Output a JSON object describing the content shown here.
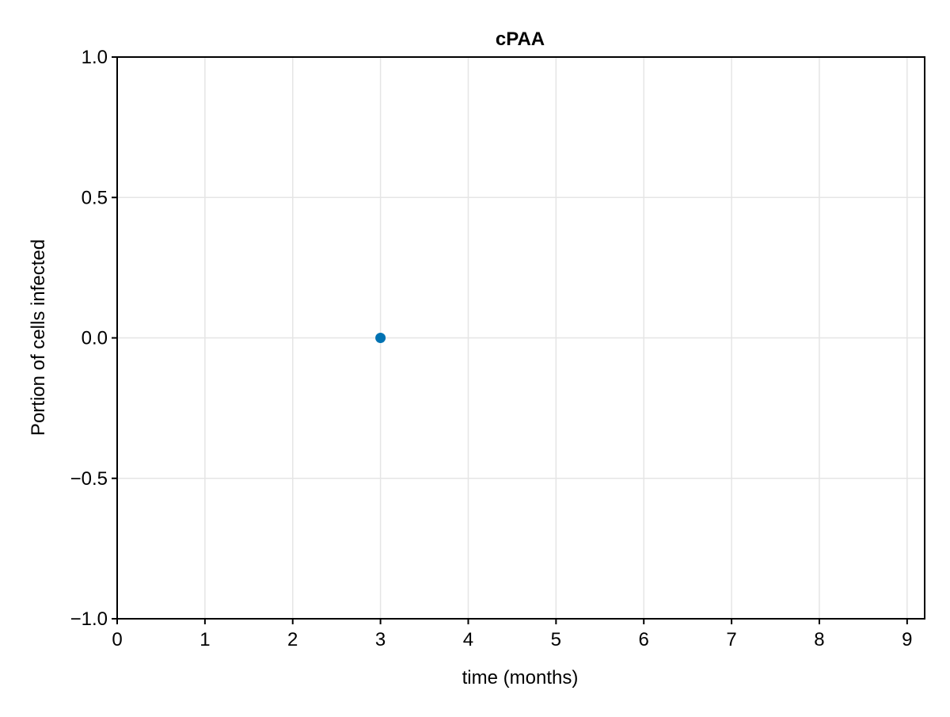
{
  "chart_data": {
    "type": "scatter",
    "title": "cPAA",
    "xlabel": "time (months)",
    "ylabel": "Portion of cells infected",
    "xlim": [
      0,
      9.2
    ],
    "ylim": [
      -1.0,
      1.0
    ],
    "x_ticks": [
      0,
      1,
      2,
      3,
      4,
      5,
      6,
      7,
      8,
      9
    ],
    "x_tick_labels": [
      "0",
      "1",
      "2",
      "3",
      "4",
      "5",
      "6",
      "7",
      "8",
      "9"
    ],
    "y_ticks": [
      -1.0,
      -0.5,
      0.0,
      0.5,
      1.0
    ],
    "y_tick_labels": [
      "−1.0",
      "−0.5",
      "0.0",
      "0.5",
      "1.0"
    ],
    "grid": true,
    "legend": "none",
    "series": [
      {
        "color": "#0072b2",
        "points": [
          {
            "x": 3,
            "y": 0.0
          }
        ]
      }
    ],
    "colors": {
      "grid": "#e5e5e5",
      "axis": "#000000",
      "marker": "#0072b2"
    }
  }
}
